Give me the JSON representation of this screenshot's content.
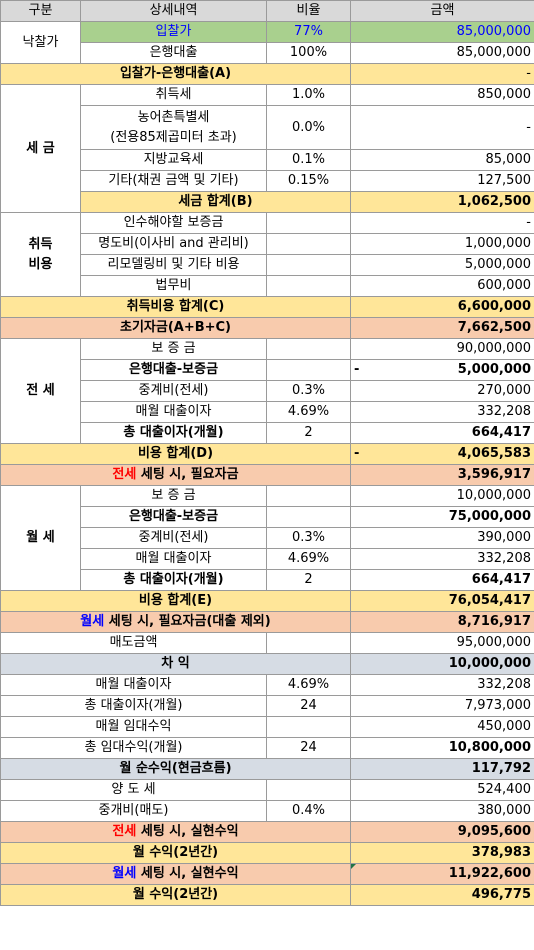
{
  "header": {
    "col1": "구분",
    "col2": "상세내역",
    "col3": "비율",
    "col4": "금액"
  },
  "bid": {
    "group": "낙찰가",
    "price_label": "입찰가",
    "price_rate": "77%",
    "price_amount": "85,000,000",
    "loan_label": "은행대출",
    "loan_rate": "100%",
    "loan_amount": "85,000,000",
    "summary_label": "입찰가-은행대출(A)",
    "summary_amount": "-"
  },
  "tax": {
    "group": "세 금",
    "acq_label": "취득세",
    "acq_rate": "1.0%",
    "acq_amount": "850,000",
    "rural_label_1": "농어촌특별세",
    "rural_label_2": "(전용85제곱미터 초과)",
    "rural_rate": "0.0%",
    "rural_amount": "-",
    "edu_label": "지방교육세",
    "edu_rate": "0.1%",
    "edu_amount": "85,000",
    "etc_label": "기타(채권 금액 및 기타)",
    "etc_rate": "0.15%",
    "etc_amount": "127,500",
    "total_label": "세금 합계(B)",
    "total_amount": "1,062,500"
  },
  "acq_cost": {
    "group_1": "취득",
    "group_2": "비용",
    "deposit_label": "인수해야할 보증금",
    "deposit_amount": "-",
    "evict_label": "명도비(이사비 and 관리비)",
    "evict_amount": "1,000,000",
    "remodel_label": "리모델링비 및 기타 비용",
    "remodel_amount": "5,000,000",
    "legal_label": "법무비",
    "legal_amount": "600,000",
    "total_label": "취득비용 합계(C)",
    "total_amount": "6,600,000"
  },
  "initial": {
    "label": "초기자금(A+B+C)",
    "amount": "7,662,500"
  },
  "jeonse": {
    "group": "전 세",
    "deposit_label": "보 증 금",
    "deposit_amount": "90,000,000",
    "diff_label": "은행대출-보증금",
    "diff_prefix": "-",
    "diff_amount": "5,000,000",
    "fee_label": "중계비(전세)",
    "fee_rate": "0.3%",
    "fee_amount": "270,000",
    "interest_label": "매월 대출이자",
    "interest_rate": "4.69%",
    "interest_amount": "332,208",
    "total_int_label": "총 대출이자(개월)",
    "total_int_months": "2",
    "total_int_amount": "664,417",
    "cost_label": "비용 합계(D)",
    "cost_prefix": "-",
    "cost_amount": "4,065,583",
    "need_label_red": "전세",
    "need_label_rest": " 세팅 시, 필요자금",
    "need_amount": "3,596,917"
  },
  "wolse": {
    "group": "월 세",
    "deposit_label": "보 증 금",
    "deposit_amount": "10,000,000",
    "diff_label": "은행대출-보증금",
    "diff_amount": "75,000,000",
    "fee_label": "중계비(전세)",
    "fee_rate": "0.3%",
    "fee_amount": "390,000",
    "interest_label": "매월 대출이자",
    "interest_rate": "4.69%",
    "interest_amount": "332,208",
    "total_int_label": "총 대출이자(개월)",
    "total_int_months": "2",
    "total_int_amount": "664,417",
    "cost_label": "비용 합계(E)",
    "cost_amount": "76,054,417",
    "need_label_blue": "월세",
    "need_label_rest": " 세팅 시, 필요자금(대출 제외)",
    "need_amount": "8,716,917"
  },
  "sale": {
    "sale_label": "매도금액",
    "sale_amount": "95,000,000",
    "profit_label": "차 익",
    "profit_amount": "10,000,000",
    "interest_label": "매월 대출이자",
    "interest_rate": "4.69%",
    "interest_amount": "332,208",
    "total_int_label": "총 대출이자(개월)",
    "total_int_months": "24",
    "total_int_amount": "7,973,000",
    "rent_label": "매월 임대수익",
    "rent_amount": "450,000",
    "total_rent_label": "총 임대수익(개월)",
    "total_rent_months": "24",
    "total_rent_amount": "10,800,000",
    "net_label": "월 순수익(현금흐름)",
    "net_amount": "117,792",
    "transfer_label": "양 도 세",
    "transfer_amount": "524,400",
    "broker_label": "중개비(매도)",
    "broker_rate": "0.4%",
    "broker_amount": "380,000"
  },
  "result": {
    "jeonse_red": "전세",
    "jeonse_rest": " 세팅 시, 실현수익",
    "jeonse_amount": "9,095,600",
    "jeonse_monthly_label": "월 수익(2년간)",
    "jeonse_monthly_amount": "378,983",
    "wolse_blue": "월세",
    "wolse_rest": " 세팅 시, 실현수익",
    "wolse_amount": "11,922,600",
    "wolse_monthly_label": "월 수익(2년간)",
    "wolse_monthly_amount": "496,775"
  }
}
